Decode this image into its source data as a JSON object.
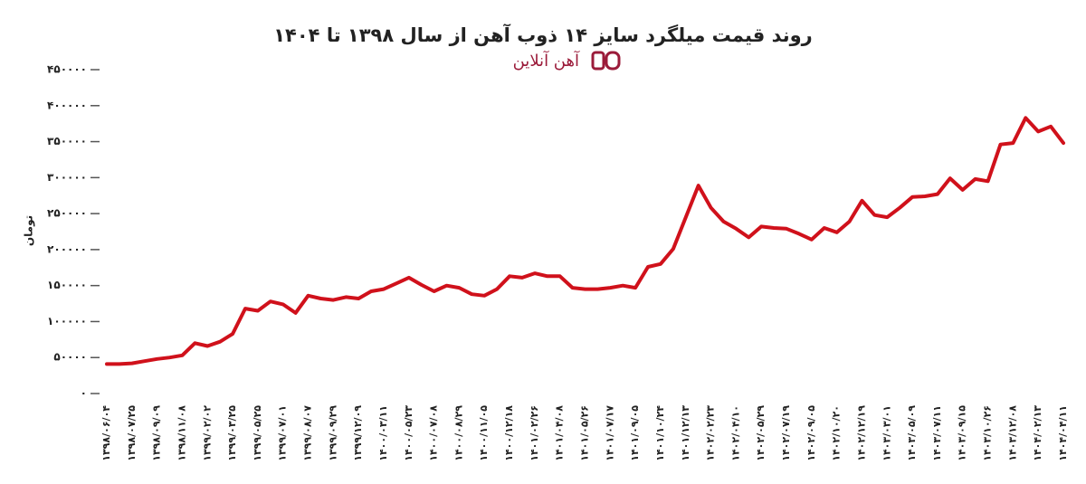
{
  "chart_data": {
    "type": "line",
    "title": "روند قیمت میلگرد سایز ۱۴ ذوب آهن از سال ۱۳۹۸ تا ۱۴۰۴",
    "logo_text": "آهن آنلاین",
    "y_label": "تومان",
    "color": "#d0111b",
    "ylim": [
      0,
      450000
    ],
    "yticks": [
      {
        "value": 0,
        "label": "۰"
      },
      {
        "value": 50000,
        "label": "۵۰۰۰۰"
      },
      {
        "value": 100000,
        "label": "۱۰۰۰۰۰"
      },
      {
        "value": 150000,
        "label": "۱۵۰۰۰۰"
      },
      {
        "value": 200000,
        "label": "۲۰۰۰۰۰"
      },
      {
        "value": 250000,
        "label": "۲۵۰۰۰۰"
      },
      {
        "value": 300000,
        "label": "۳۰۰۰۰۰"
      },
      {
        "value": 350000,
        "label": "۳۵۰۰۰۰"
      },
      {
        "value": 400000,
        "label": "۴۰۰۰۰۰"
      },
      {
        "value": 450000,
        "label": "۴۵۰۰۰۰"
      }
    ],
    "categories": [
      "۱۳۹۸/۰۶/۰۴",
      null,
      "۱۳۹۸/۰۷/۲۵",
      null,
      "۱۳۹۸/۰۹/۰۹",
      null,
      "۱۳۹۸/۱۱/۰۸",
      null,
      "۱۳۹۹/۰۲/۰۲",
      null,
      "۱۳۹۹/۰۳/۲۵",
      null,
      "۱۳۹۹/۰۵/۲۵",
      null,
      "۱۳۹۹/۰۷/۰۱",
      null,
      "۱۳۹۹/۰۸/۰۷",
      null,
      "۱۳۹۹/۰۹/۲۹",
      null,
      "۱۳۹۹/۱۲/۰۹",
      null,
      "۱۴۰۰/۰۳/۱۱",
      null,
      "۱۴۰۰/۰۵/۲۳",
      null,
      "۱۴۰۰/۰۷/۰۸",
      null,
      "۱۴۰۰/۰۸/۲۹",
      null,
      "۱۴۰۰/۱۱/۰۵",
      null,
      "۱۴۰۰/۱۲/۱۸",
      null,
      "۱۴۰۱/۰۲/۲۶",
      null,
      "۱۴۰۱/۰۴/۰۸",
      null,
      "۱۴۰۱/۰۵/۲۶",
      null,
      "۱۴۰۱/۰۷/۱۷",
      null,
      "۱۴۰۱/۰۹/۰۵",
      null,
      "۱۴۰۱/۱۰/۲۴",
      null,
      "۱۴۰۱/۱۲/۱۳",
      null,
      "۱۴۰۲/۰۲/۲۳",
      null,
      "۱۴۰۲/۰۴/۱۰",
      null,
      "۱۴۰۲/۰۵/۲۹",
      null,
      "۱۴۰۲/۰۷/۱۹",
      null,
      "۱۴۰۲/۰۹/۰۵",
      null,
      "۱۴۰۲/۱۰/۲۰",
      null,
      "۱۴۰۲/۱۲/۱۹",
      null,
      "۱۴۰۳/۰۳/۰۱",
      null,
      "۱۴۰۳/۰۵/۰۹",
      null,
      "۱۴۰۳/۰۷/۱۱",
      null,
      "۱۴۰۳/۰۹/۱۵",
      null,
      "۱۴۰۳/۱۰/۲۶",
      null,
      "۱۴۰۳/۱۲/۰۸",
      null,
      "۱۴۰۴/۰۲/۱۳",
      null,
      "۱۴۰۴/۰۴/۱۱"
    ],
    "values": [
      41000,
      41000,
      42000,
      45000,
      48000,
      50000,
      53000,
      70000,
      66000,
      72000,
      83000,
      118000,
      115000,
      128000,
      124000,
      112000,
      136000,
      132000,
      130000,
      134000,
      132000,
      142000,
      145000,
      153000,
      161000,
      151000,
      142000,
      150000,
      147000,
      138000,
      136000,
      145000,
      163000,
      161000,
      167000,
      163000,
      163000,
      147000,
      145000,
      145000,
      147000,
      150000,
      147000,
      176000,
      180000,
      201000,
      245000,
      289000,
      258000,
      239000,
      229000,
      217000,
      232000,
      230000,
      229000,
      222000,
      214000,
      230000,
      224000,
      239000,
      268000,
      248000,
      245000,
      258000,
      273000,
      274000,
      277000,
      299000,
      283000,
      298000,
      295000,
      346000,
      348000,
      383000,
      364000,
      371000,
      348000
    ]
  }
}
